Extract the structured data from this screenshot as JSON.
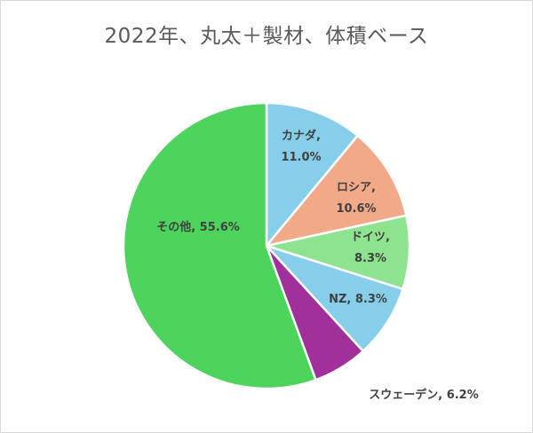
{
  "title": "2022年、丸太＋製材、体積ベース",
  "chart_data": {
    "type": "pie",
    "title": "2022年、丸太＋製材、体積ベース",
    "unit": "%",
    "slices": [
      {
        "name": "カナダ",
        "value": 11.0,
        "label_line1": "カナダ,",
        "label_line2": "11.0%",
        "color": "#87CEEB"
      },
      {
        "name": "ロシア",
        "value": 10.6,
        "label_line1": "ロシア,",
        "label_line2": "10.6%",
        "color": "#F2A987"
      },
      {
        "name": "ドイツ",
        "value": 8.3,
        "label_line1": "ドイツ,",
        "label_line2": "8.3%",
        "color": "#8EE38E"
      },
      {
        "name": "NZ",
        "value": 8.3,
        "label_line1": "NZ, 8.3%",
        "label_line2": "",
        "color": "#87CEEB"
      },
      {
        "name": "スウェーデン",
        "value": 6.2,
        "label_line1": "スウェーデン, 6.2%",
        "label_line2": "",
        "color": "#A0309A"
      },
      {
        "name": "その他",
        "value": 55.6,
        "label_line1": "その他, 55.6%",
        "label_line2": "",
        "color": "#4CD45C"
      }
    ],
    "legend": "none",
    "start_angle": "12 o'clock",
    "direction": "clockwise"
  }
}
